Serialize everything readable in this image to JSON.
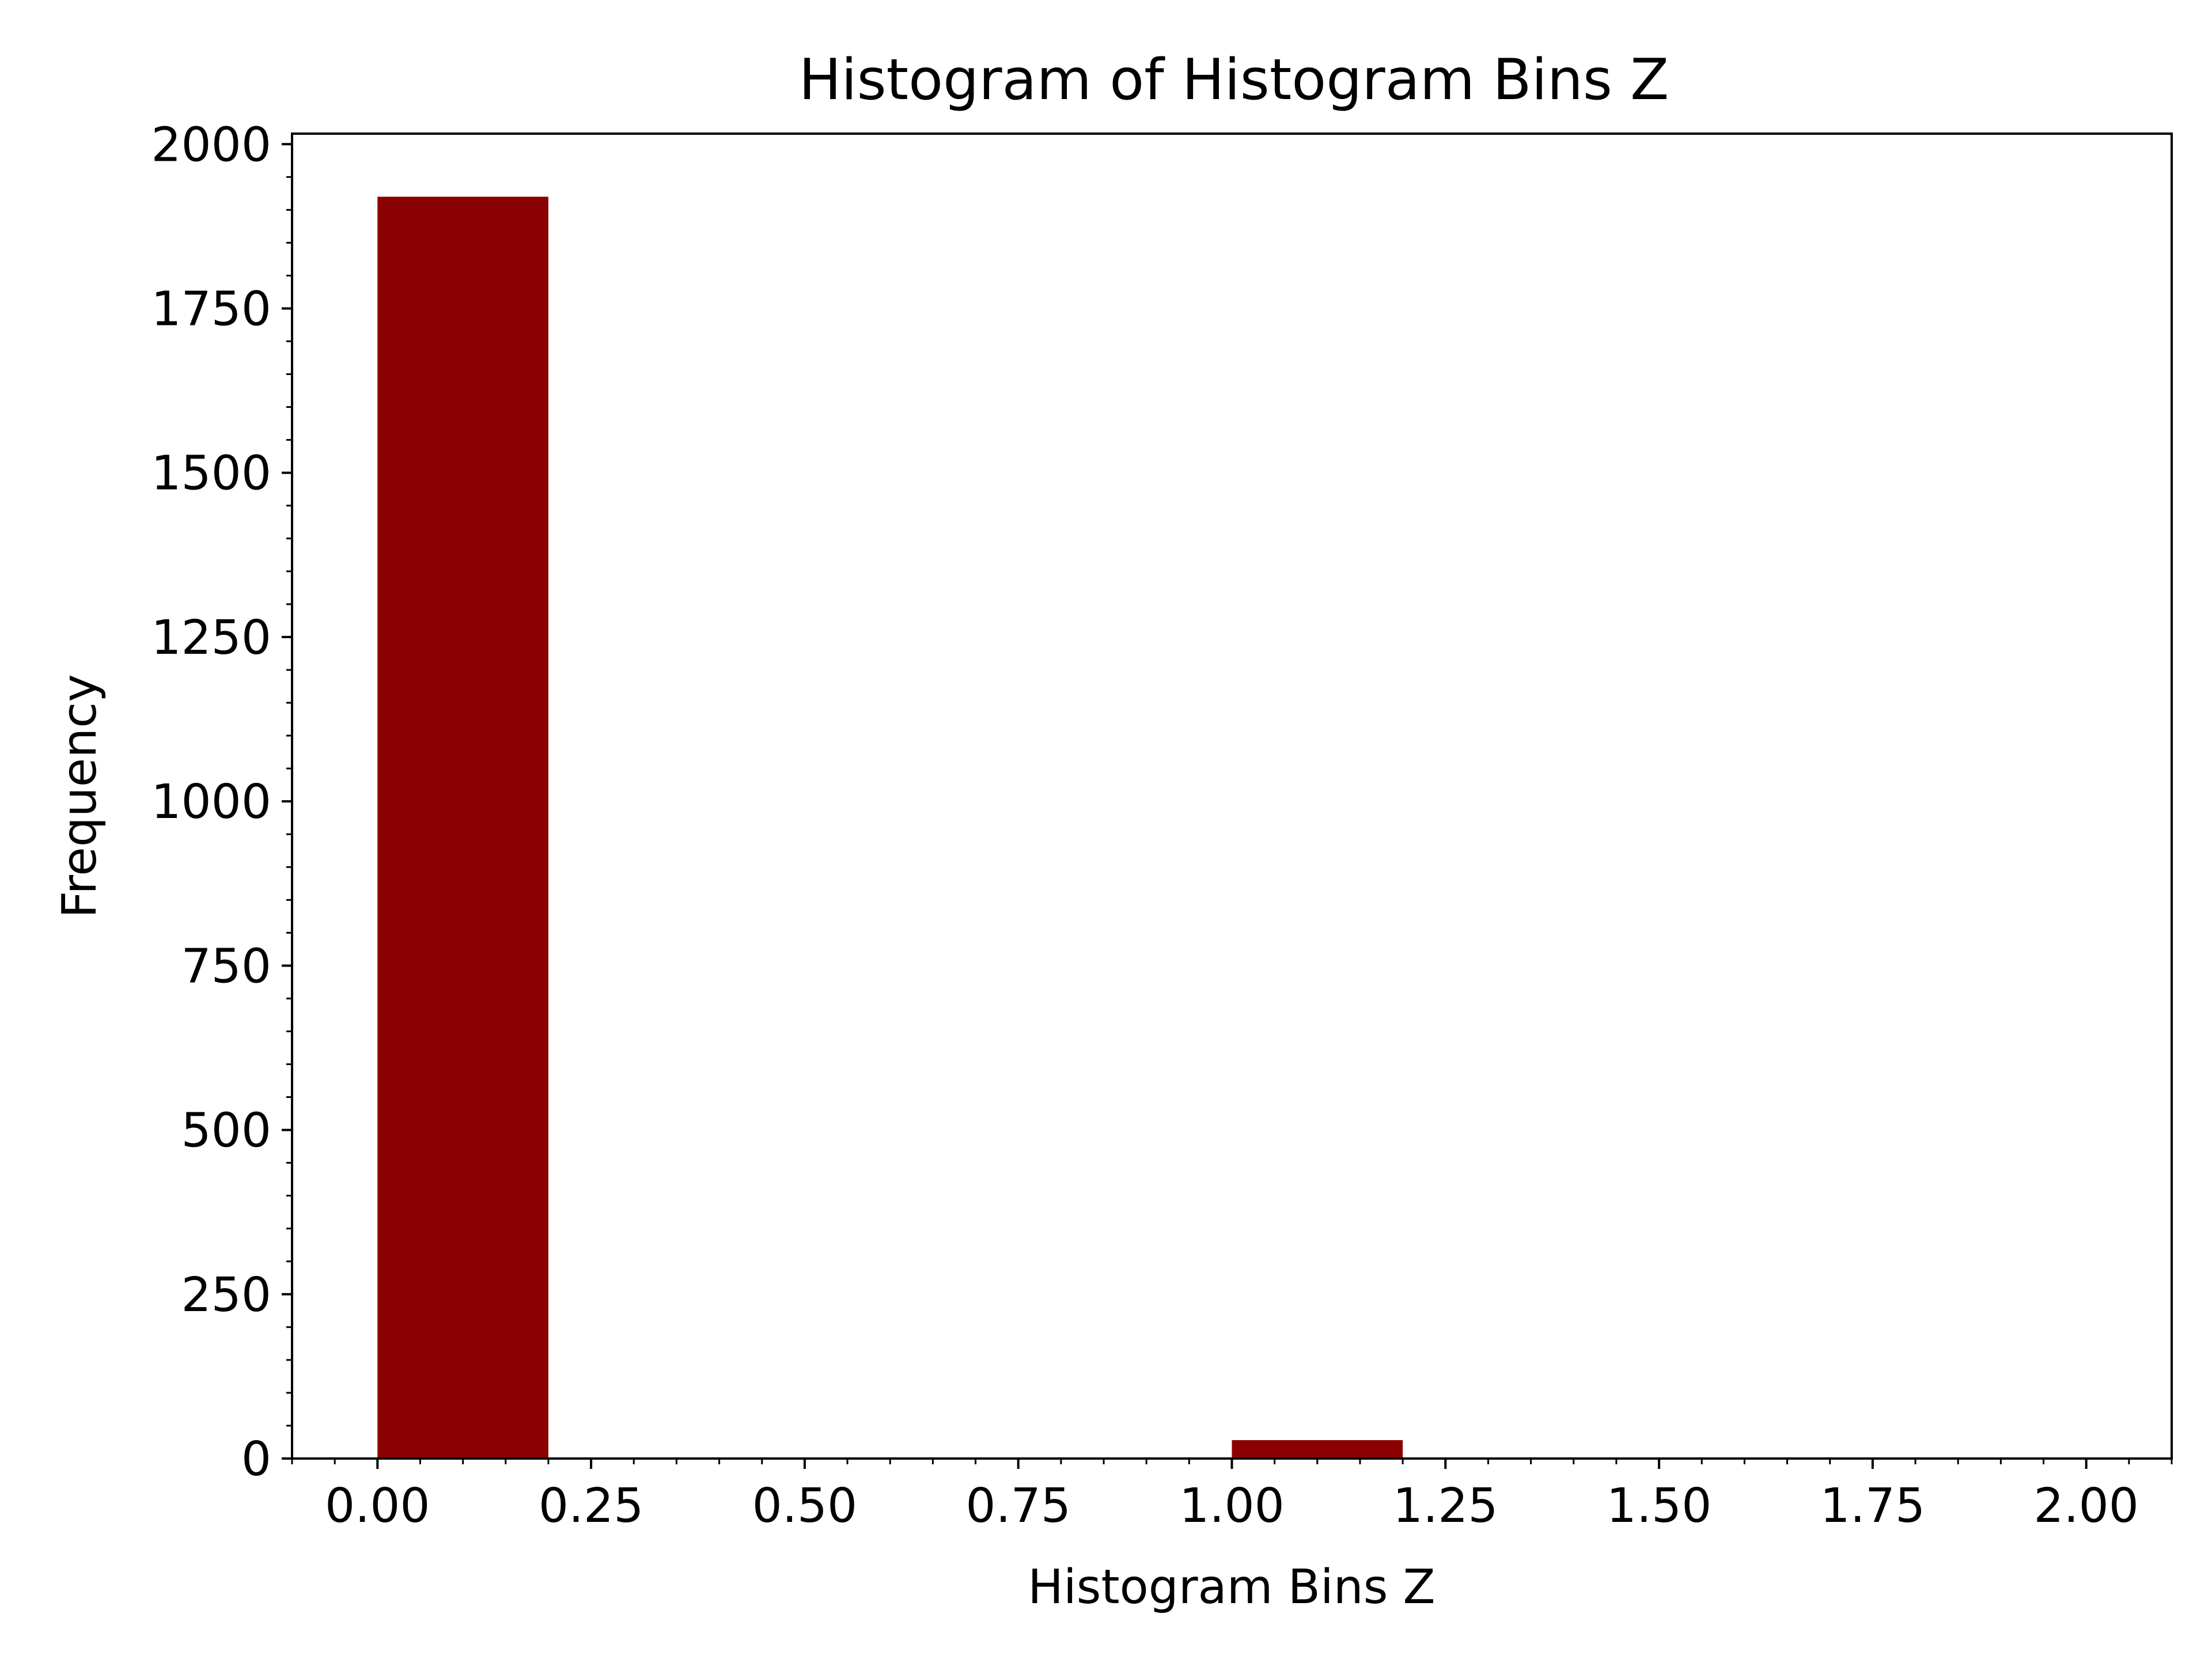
{
  "chart_data": {
    "type": "bar",
    "title": "Histogram of Histogram Bins Z",
    "xlabel": "Histogram Bins Z",
    "ylabel": "Frequency",
    "bins": [
      {
        "x0": 0.0,
        "x1": 0.2,
        "value": 1920
      },
      {
        "x0": 0.2,
        "x1": 0.4,
        "value": 0
      },
      {
        "x0": 0.4,
        "x1": 0.6,
        "value": 0
      },
      {
        "x0": 0.6,
        "x1": 0.8,
        "value": 0
      },
      {
        "x0": 0.8,
        "x1": 1.0,
        "value": 0
      },
      {
        "x0": 1.0,
        "x1": 1.2,
        "value": 28
      },
      {
        "x0": 1.2,
        "x1": 1.4,
        "value": 0
      },
      {
        "x0": 1.4,
        "x1": 1.6,
        "value": 0
      },
      {
        "x0": 1.6,
        "x1": 1.8,
        "value": 0
      },
      {
        "x0": 1.8,
        "x1": 2.0,
        "value": 0
      }
    ],
    "xlim": [
      -0.1,
      2.1
    ],
    "ylim": [
      0,
      2016
    ],
    "x_ticks": [
      "0.00",
      "0.25",
      "0.50",
      "0.75",
      "1.00",
      "1.25",
      "1.50",
      "1.75",
      "2.00"
    ],
    "y_ticks": [
      "0",
      "250",
      "500",
      "750",
      "1000",
      "1250",
      "1500",
      "1750",
      "2000"
    ],
    "minor_ticks": true,
    "grid": false,
    "legend": "none",
    "colors": {
      "bar": "#8b0000",
      "axis": "#000000",
      "background": "#ffffff"
    }
  }
}
